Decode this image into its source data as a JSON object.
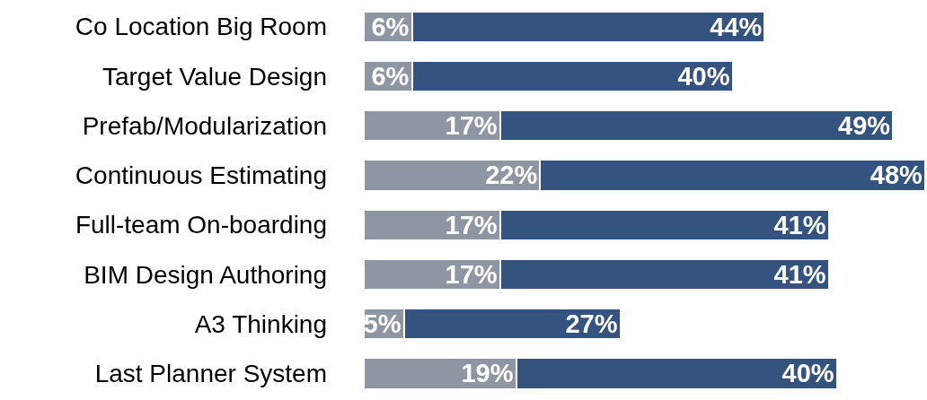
{
  "chart_data": {
    "type": "bar",
    "orientation": "horizontal",
    "stacked": true,
    "categories": [
      "Co Location Big Room",
      "Target Value Design",
      "Prefab/Modularization",
      "Continuous Estimating",
      "Full-team On-boarding",
      "BIM Design Authoring",
      "A3 Thinking",
      "Last Planner System"
    ],
    "series": [
      {
        "color": "#8e96a4",
        "values": [
          6,
          6,
          17,
          22,
          17,
          17,
          5,
          19
        ],
        "value_labels": [
          "6%",
          "6%",
          "17%",
          "22%",
          "17%",
          "17%",
          "5%",
          "19%"
        ]
      },
      {
        "color": "#35537f",
        "values": [
          44,
          40,
          49,
          48,
          41,
          41,
          27,
          40
        ],
        "value_labels": [
          "44%",
          "40%",
          "49%",
          "48%",
          "41%",
          "41%",
          "27%",
          "40%"
        ]
      }
    ]
  }
}
